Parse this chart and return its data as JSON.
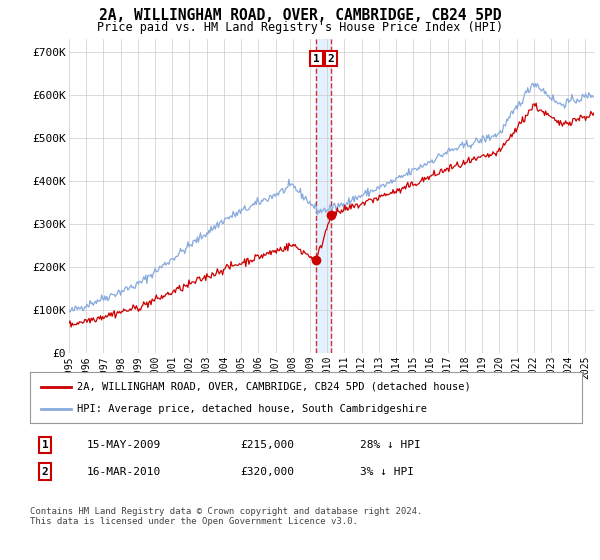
{
  "title": "2A, WILLINGHAM ROAD, OVER, CAMBRIDGE, CB24 5PD",
  "subtitle": "Price paid vs. HM Land Registry's House Price Index (HPI)",
  "legend_line1": "2A, WILLINGHAM ROAD, OVER, CAMBRIDGE, CB24 5PD (detached house)",
  "legend_line2": "HPI: Average price, detached house, South Cambridgeshire",
  "transaction1_date": "15-MAY-2009",
  "transaction1_price": "£215,000",
  "transaction1_hpi": "28% ↓ HPI",
  "transaction2_date": "16-MAR-2010",
  "transaction2_price": "£320,000",
  "transaction2_hpi": "3% ↓ HPI",
  "footer": "Contains HM Land Registry data © Crown copyright and database right 2024.\nThis data is licensed under the Open Government Licence v3.0.",
  "price_color": "#cc0000",
  "hpi_color": "#88aadd",
  "shade_color": "#ddeeff",
  "background_color": "#ffffff",
  "grid_color": "#cccccc",
  "ylim": [
    0,
    730000
  ],
  "yticks": [
    0,
    100000,
    200000,
    300000,
    400000,
    500000,
    600000,
    700000
  ],
  "transaction1_x": 2009.37,
  "transaction2_x": 2010.21,
  "transaction1_y": 215000,
  "transaction2_y": 320000,
  "xmin": 1995,
  "xmax": 2025.5
}
